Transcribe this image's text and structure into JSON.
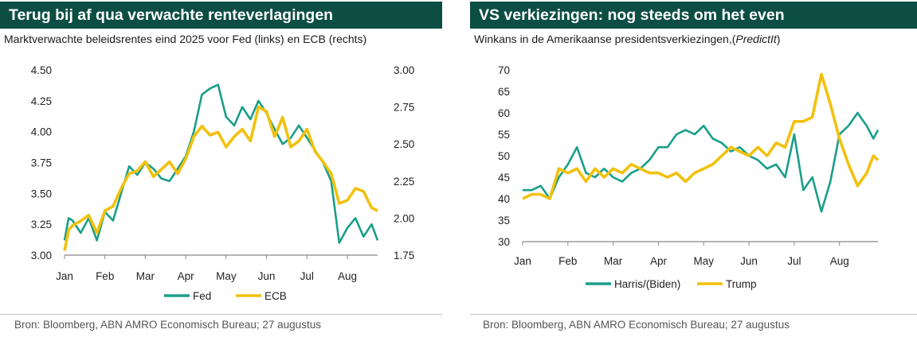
{
  "colors": {
    "header_bg": "#0c4e43",
    "fed": "#1a9e8a",
    "ecb": "#f2c10d",
    "harris": "#1a9e8a",
    "trump": "#f2c10d",
    "axis": "#888888"
  },
  "left": {
    "title": "Terug bij af qua verwachte renteverlagingen",
    "subtitle": "Marktverwachte beleidsrentes eind 2025 voor Fed (links) en ECB (rechts)",
    "source": "Bron: Bloomberg, ABN AMRO Economisch Bureau; 27 augustus"
  },
  "right": {
    "title": "VS verkiezingen: nog steeds om het even",
    "subtitle_main": "Winkans in de Amerikaanse presidentsverkiezingen,(",
    "subtitle_italic": "PredictIt",
    "subtitle_end": ")",
    "source": "Bron: Bloomberg, ABN AMRO Economisch Bureau; 27 augustus"
  },
  "chart_data": [
    {
      "type": "line",
      "x_ticks": [
        "Jan",
        "Feb",
        "Mar",
        "Apr",
        "May",
        "Jun",
        "Jul",
        "Aug"
      ],
      "y_left_ticks": [
        "4.50",
        "4.25",
        "4.00",
        "3.75",
        "3.50",
        "3.25",
        "3.00"
      ],
      "y_right_ticks": [
        "3.00",
        "2.75",
        "2.50",
        "2.25",
        "2.00",
        "1.75"
      ],
      "ylim_left": [
        3.0,
        4.5
      ],
      "ylim_right": [
        1.75,
        3.0
      ],
      "legend_position": "bottom",
      "series": [
        {
          "name": "Fed",
          "axis": "left",
          "x": [
            0,
            0.1,
            0.2,
            0.4,
            0.6,
            0.8,
            1.0,
            1.2,
            1.4,
            1.6,
            1.8,
            2.0,
            2.2,
            2.4,
            2.6,
            2.8,
            3.0,
            3.2,
            3.4,
            3.6,
            3.8,
            4.0,
            4.2,
            4.4,
            4.6,
            4.8,
            5.0,
            5.2,
            5.4,
            5.6,
            5.8,
            6.0,
            6.2,
            6.4,
            6.6,
            6.8,
            7.0,
            7.2,
            7.4,
            7.6,
            7.75
          ],
          "y": [
            3.12,
            3.3,
            3.28,
            3.18,
            3.3,
            3.12,
            3.35,
            3.28,
            3.5,
            3.72,
            3.65,
            3.75,
            3.7,
            3.62,
            3.6,
            3.7,
            3.8,
            4.0,
            4.3,
            4.35,
            4.38,
            4.12,
            4.05,
            4.2,
            4.1,
            4.25,
            4.15,
            4.02,
            3.9,
            3.95,
            4.05,
            3.95,
            3.85,
            3.75,
            3.6,
            3.1,
            3.22,
            3.3,
            3.15,
            3.25,
            3.12
          ]
        },
        {
          "name": "ECB",
          "axis": "right",
          "x": [
            0,
            0.1,
            0.2,
            0.4,
            0.6,
            0.8,
            1.0,
            1.2,
            1.4,
            1.6,
            1.8,
            2.0,
            2.2,
            2.4,
            2.6,
            2.8,
            3.0,
            3.2,
            3.4,
            3.6,
            3.8,
            4.0,
            4.2,
            4.4,
            4.6,
            4.8,
            5.0,
            5.2,
            5.4,
            5.6,
            5.8,
            6.0,
            6.2,
            6.4,
            6.6,
            6.8,
            7.0,
            7.2,
            7.4,
            7.6,
            7.75
          ],
          "y": [
            1.78,
            1.92,
            1.95,
            1.98,
            2.02,
            1.9,
            2.05,
            2.08,
            2.2,
            2.3,
            2.32,
            2.38,
            2.28,
            2.33,
            2.38,
            2.3,
            2.4,
            2.55,
            2.62,
            2.56,
            2.58,
            2.48,
            2.55,
            2.6,
            2.52,
            2.75,
            2.72,
            2.55,
            2.68,
            2.48,
            2.52,
            2.6,
            2.45,
            2.38,
            2.3,
            2.1,
            2.12,
            2.2,
            2.18,
            2.07,
            2.05
          ]
        }
      ]
    },
    {
      "type": "line",
      "x_ticks": [
        "Jan",
        "Feb",
        "Mar",
        "Apr",
        "May",
        "Jun",
        "Jul",
        "Aug"
      ],
      "y_ticks": [
        "70",
        "65",
        "60",
        "55",
        "50",
        "45",
        "40",
        "35",
        "30"
      ],
      "ylim": [
        30,
        70
      ],
      "legend_position": "bottom",
      "series": [
        {
          "name": "Harris/(Biden)",
          "x": [
            0,
            0.2,
            0.4,
            0.6,
            0.8,
            1.0,
            1.2,
            1.4,
            1.6,
            1.8,
            2.0,
            2.2,
            2.4,
            2.6,
            2.8,
            3.0,
            3.2,
            3.4,
            3.6,
            3.8,
            4.0,
            4.2,
            4.4,
            4.6,
            4.8,
            5.0,
            5.2,
            5.4,
            5.6,
            5.8,
            6.0,
            6.2,
            6.4,
            6.6,
            6.8,
            7.0,
            7.2,
            7.4,
            7.6,
            7.75,
            7.85
          ],
          "y": [
            42,
            42,
            43,
            40,
            45,
            48,
            52,
            46,
            45,
            47,
            45,
            44,
            46,
            47,
            49,
            52,
            52,
            55,
            56,
            55,
            57,
            54,
            53,
            51,
            52,
            50,
            49,
            47,
            48,
            45,
            55,
            42,
            45,
            37,
            44,
            55,
            57,
            60,
            57,
            54,
            56
          ]
        },
        {
          "name": "Trump",
          "x": [
            0,
            0.2,
            0.4,
            0.6,
            0.8,
            1.0,
            1.2,
            1.4,
            1.6,
            1.8,
            2.0,
            2.2,
            2.4,
            2.6,
            2.8,
            3.0,
            3.2,
            3.4,
            3.6,
            3.8,
            4.0,
            4.2,
            4.4,
            4.6,
            4.8,
            5.0,
            5.2,
            5.4,
            5.6,
            5.8,
            6.0,
            6.2,
            6.4,
            6.6,
            6.8,
            7.0,
            7.2,
            7.4,
            7.6,
            7.75,
            7.85
          ],
          "y": [
            40,
            41,
            41,
            40,
            47,
            46,
            47,
            44,
            47,
            45,
            47,
            46,
            48,
            47,
            46,
            46,
            45,
            46,
            44,
            46,
            47,
            48,
            50,
            52,
            51,
            50,
            52,
            50,
            53,
            52,
            58,
            58,
            59,
            69,
            62,
            54,
            48,
            43,
            46,
            50,
            49
          ]
        }
      ]
    }
  ],
  "legend": {
    "left": [
      "Fed",
      "ECB"
    ],
    "right": [
      "Harris/(Biden)",
      "Trump"
    ]
  }
}
